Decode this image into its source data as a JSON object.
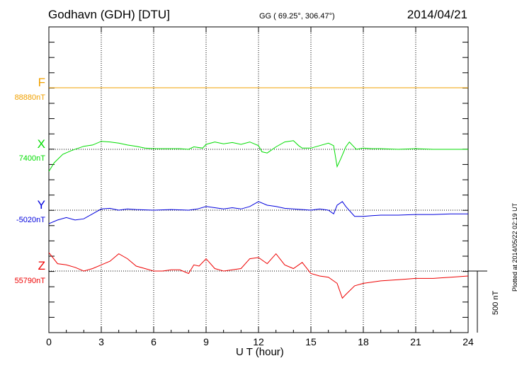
{
  "header": {
    "title": "Godhavn (GDH)  [DTU]",
    "coords": "GG ( 69.25°, 306.47°)",
    "date": "2014/04/21"
  },
  "footer": {
    "plotted": "Plotted at 2014/05/22 02:19 UT",
    "scale_label": "500 nT"
  },
  "components": [
    {
      "name": "F",
      "baseline": "88880nT",
      "color": "#f0a000"
    },
    {
      "name": "X",
      "baseline": "7400nT",
      "color": "#00dd00"
    },
    {
      "name": "Y",
      "baseline": "-5020nT",
      "color": "#0000dd"
    },
    {
      "name": "Z",
      "baseline": "55790nT",
      "color": "#ee0000"
    }
  ],
  "chart_data": {
    "type": "line",
    "xlabel": "U T (hour)",
    "xlim": [
      0,
      24
    ],
    "x_ticks": [
      "0",
      "3",
      "6",
      "9",
      "12",
      "15",
      "18",
      "21",
      "24"
    ],
    "grid": "dotted vertical at every 3 hours; dotted baseline per component",
    "scale_bar_nT": 500,
    "series": [
      {
        "name": "F",
        "offset_nT": [
          [
            0,
            0
          ],
          [
            24,
            0
          ]
        ]
      },
      {
        "name": "X",
        "offset_nT": [
          [
            0,
            -180
          ],
          [
            0.3,
            -110
          ],
          [
            0.8,
            -40
          ],
          [
            1.3,
            -10
          ],
          [
            2,
            25
          ],
          [
            2.5,
            35
          ],
          [
            3,
            65
          ],
          [
            3.5,
            60
          ],
          [
            4,
            50
          ],
          [
            4.5,
            35
          ],
          [
            5,
            25
          ],
          [
            5.5,
            10
          ],
          [
            6,
            5
          ],
          [
            6.5,
            5
          ],
          [
            7,
            5
          ],
          [
            7.5,
            5
          ],
          [
            8,
            0
          ],
          [
            8.3,
            20
          ],
          [
            8.8,
            10
          ],
          [
            9,
            40
          ],
          [
            9.5,
            60
          ],
          [
            10,
            45
          ],
          [
            10.5,
            55
          ],
          [
            11,
            40
          ],
          [
            11.5,
            60
          ],
          [
            12,
            30
          ],
          [
            12.2,
            -20
          ],
          [
            12.5,
            -30
          ],
          [
            13,
            20
          ],
          [
            13.5,
            60
          ],
          [
            14,
            70
          ],
          [
            14.3,
            30
          ],
          [
            14.5,
            10
          ],
          [
            15,
            10
          ],
          [
            15.5,
            30
          ],
          [
            16,
            50
          ],
          [
            16.3,
            30
          ],
          [
            16.5,
            -140
          ],
          [
            16.7,
            -80
          ],
          [
            17,
            20
          ],
          [
            17.2,
            60
          ],
          [
            17.4,
            30
          ],
          [
            17.6,
            0
          ],
          [
            18,
            10
          ],
          [
            18.5,
            5
          ],
          [
            19,
            5
          ],
          [
            20,
            0
          ],
          [
            21,
            5
          ],
          [
            22,
            0
          ],
          [
            23,
            0
          ],
          [
            24,
            0
          ]
        ]
      },
      {
        "name": "Y",
        "offset_nT": [
          [
            0,
            -110
          ],
          [
            0.5,
            -80
          ],
          [
            1,
            -60
          ],
          [
            1.5,
            -80
          ],
          [
            2,
            -70
          ],
          [
            2.5,
            -30
          ],
          [
            3,
            10
          ],
          [
            3.5,
            15
          ],
          [
            4,
            0
          ],
          [
            4.5,
            10
          ],
          [
            5,
            5
          ],
          [
            6,
            0
          ],
          [
            7,
            5
          ],
          [
            8,
            0
          ],
          [
            8.5,
            10
          ],
          [
            9,
            30
          ],
          [
            9.5,
            20
          ],
          [
            10,
            10
          ],
          [
            10.5,
            20
          ],
          [
            11,
            10
          ],
          [
            11.5,
            30
          ],
          [
            12,
            70
          ],
          [
            12.5,
            40
          ],
          [
            13,
            30
          ],
          [
            13.5,
            15
          ],
          [
            14,
            10
          ],
          [
            14.5,
            5
          ],
          [
            15,
            0
          ],
          [
            15.5,
            10
          ],
          [
            16,
            0
          ],
          [
            16.3,
            -30
          ],
          [
            16.5,
            40
          ],
          [
            16.8,
            70
          ],
          [
            17,
            30
          ],
          [
            17.5,
            -50
          ],
          [
            18,
            -50
          ],
          [
            18.5,
            -45
          ],
          [
            19,
            -40
          ],
          [
            20,
            -40
          ],
          [
            21,
            -35
          ],
          [
            22,
            -35
          ],
          [
            23,
            -30
          ],
          [
            24,
            -30
          ]
        ]
      },
      {
        "name": "Z",
        "offset_nT": [
          [
            0,
            150
          ],
          [
            0.5,
            60
          ],
          [
            1,
            50
          ],
          [
            1.5,
            30
          ],
          [
            2,
            0
          ],
          [
            2.5,
            20
          ],
          [
            3,
            50
          ],
          [
            3.5,
            80
          ],
          [
            4,
            140
          ],
          [
            4.5,
            100
          ],
          [
            5,
            40
          ],
          [
            5.5,
            20
          ],
          [
            6,
            0
          ],
          [
            6.5,
            0
          ],
          [
            7,
            10
          ],
          [
            7.5,
            10
          ],
          [
            8,
            -20
          ],
          [
            8.3,
            50
          ],
          [
            8.6,
            40
          ],
          [
            9,
            100
          ],
          [
            9.5,
            20
          ],
          [
            10,
            0
          ],
          [
            10.5,
            10
          ],
          [
            11,
            20
          ],
          [
            11.5,
            100
          ],
          [
            12,
            110
          ],
          [
            12.5,
            60
          ],
          [
            13,
            140
          ],
          [
            13.5,
            50
          ],
          [
            14,
            20
          ],
          [
            14.5,
            70
          ],
          [
            15,
            -20
          ],
          [
            15.5,
            -40
          ],
          [
            16,
            -50
          ],
          [
            16.5,
            -100
          ],
          [
            16.8,
            -220
          ],
          [
            17,
            -190
          ],
          [
            17.5,
            -120
          ],
          [
            18,
            -100
          ],
          [
            19,
            -80
          ],
          [
            20,
            -70
          ],
          [
            21,
            -60
          ],
          [
            22,
            -60
          ],
          [
            23,
            -50
          ],
          [
            24,
            -40
          ]
        ]
      }
    ]
  }
}
